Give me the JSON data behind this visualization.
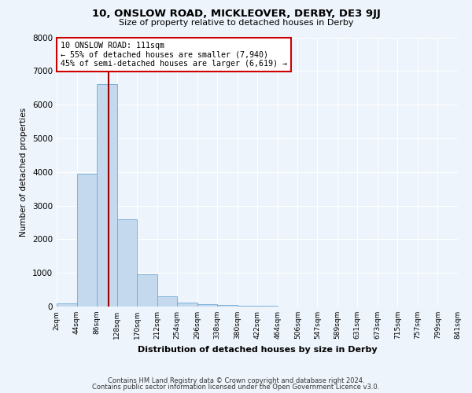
{
  "title1": "10, ONSLOW ROAD, MICKLEOVER, DERBY, DE3 9JJ",
  "title2": "Size of property relative to detached houses in Derby",
  "xlabel": "Distribution of detached houses by size in Derby",
  "ylabel": "Number of detached properties",
  "footer1": "Contains HM Land Registry data © Crown copyright and database right 2024.",
  "footer2": "Contains public sector information licensed under the Open Government Licence v3.0.",
  "bin_edges": [
    2,
    44,
    86,
    128,
    170,
    212,
    254,
    296,
    338,
    380,
    422,
    464,
    506,
    547,
    589,
    631,
    673,
    715,
    757,
    799,
    841
  ],
  "bar_heights": [
    100,
    3950,
    6600,
    2600,
    950,
    300,
    120,
    80,
    50,
    20,
    15,
    10,
    8,
    5,
    4,
    3,
    2,
    2,
    1,
    1
  ],
  "bar_color": "#C5D9EE",
  "bar_edge_color": "#6AAAD4",
  "background_color": "#EEF4FB",
  "grid_color": "#FFFFFF",
  "vline_x": 111,
  "vline_color": "#990000",
  "annotation_text": "10 ONSLOW ROAD: 111sqm\n← 55% of detached houses are smaller (7,940)\n45% of semi-detached houses are larger (6,619) →",
  "annotation_box_color": "#FFFFFF",
  "annotation_border_color": "#CC0000",
  "ylim": [
    0,
    8000
  ],
  "yticks": [
    0,
    1000,
    2000,
    3000,
    4000,
    5000,
    6000,
    7000,
    8000
  ]
}
